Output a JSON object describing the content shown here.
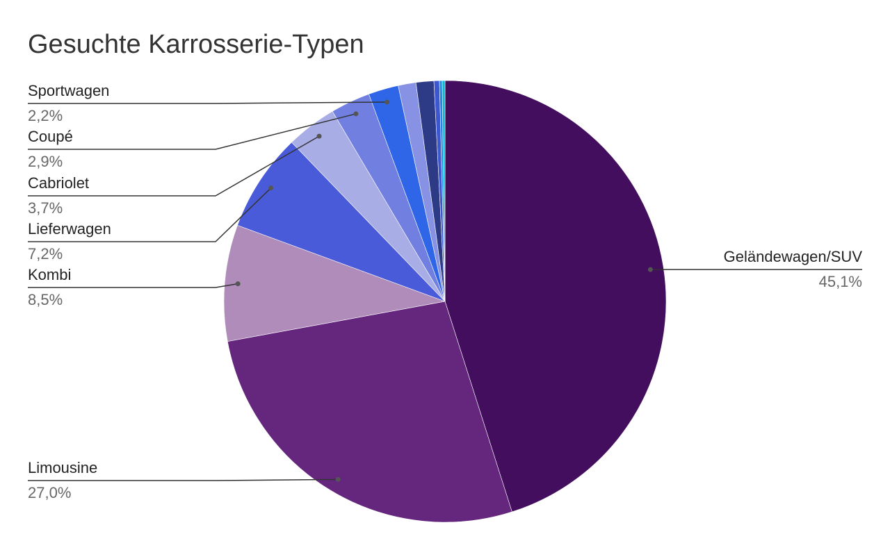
{
  "chart_data": {
    "type": "pie",
    "title": "Gesuchte Karrosserie-Typen",
    "categories": [
      "Geländewagen/SUV",
      "Limousine",
      "Kombi",
      "Lieferwagen",
      "Cabriolet",
      "Coupé",
      "Sportwagen",
      null,
      null,
      null,
      null,
      null
    ],
    "values": [
      45.1,
      27.0,
      8.5,
      7.2,
      3.7,
      2.9,
      2.2,
      1.3,
      1.3,
      0.4,
      0.2,
      0.2
    ],
    "value_labels": [
      "45,1%",
      "27,0%",
      "8,5%",
      "7,2%",
      "3,7%",
      "2,9%",
      "2,2%",
      null,
      null,
      null,
      null,
      null
    ],
    "colors": [
      "#430e5e",
      "#65277e",
      "#b08cbb",
      "#4a5bd9",
      "#a8ade6",
      "#7180e0",
      "#2f66e8",
      "#8792e4",
      "#2d3a86",
      "#3d57d0",
      "#1e88e5",
      "#00bcd4"
    ]
  }
}
